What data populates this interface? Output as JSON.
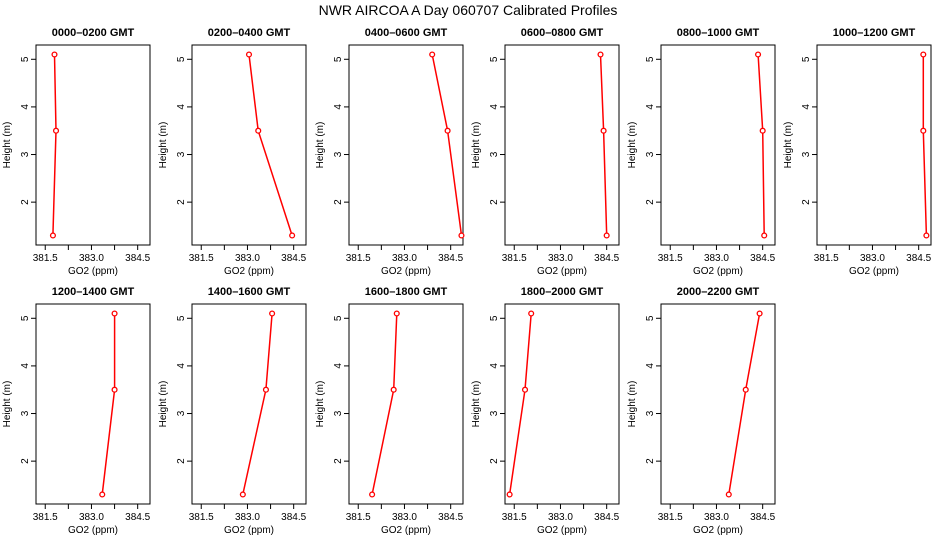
{
  "figure_title": "NWR AIRCOA A  Day 060707  Calibrated Profiles",
  "colors": {
    "profile_line": "#ff0000",
    "profile_marker": "#ff0000",
    "axes": "#000000"
  },
  "chart_data": [
    {
      "type": "line",
      "title": "0000–0200 GMT",
      "xlabel": "GO2 (ppm)",
      "ylabel": "Height (m)",
      "xlim": [
        381.2,
        384.9
      ],
      "ylim": [
        1.1,
        5.3
      ],
      "xticks": [
        "381.5",
        "383.0",
        "384.5"
      ],
      "yticks": [
        "2",
        "3",
        "4",
        "5"
      ],
      "grid": false,
      "series": [
        {
          "x": [
            381.75,
            381.85,
            381.8
          ],
          "y": [
            1.3,
            3.5,
            5.1
          ]
        }
      ]
    },
    {
      "type": "line",
      "title": "0200–0400 GMT",
      "xlabel": "GO2 (ppm)",
      "ylabel": "Height (m)",
      "xlim": [
        381.2,
        384.9
      ],
      "ylim": [
        1.1,
        5.3
      ],
      "xticks": [
        "381.5",
        "383.0",
        "384.5"
      ],
      "yticks": [
        "2",
        "3",
        "4",
        "5"
      ],
      "grid": false,
      "series": [
        {
          "x": [
            384.45,
            383.35,
            383.05
          ],
          "y": [
            1.3,
            3.5,
            5.1
          ]
        }
      ]
    },
    {
      "type": "line",
      "title": "0400–0600 GMT",
      "xlabel": "GO2 (ppm)",
      "ylabel": "Height (m)",
      "xlim": [
        381.2,
        384.9
      ],
      "ylim": [
        1.1,
        5.3
      ],
      "xticks": [
        "381.5",
        "383.0",
        "384.5"
      ],
      "yticks": [
        "2",
        "3",
        "4",
        "5"
      ],
      "grid": false,
      "series": [
        {
          "x": [
            384.85,
            384.4,
            383.9
          ],
          "y": [
            1.3,
            3.5,
            5.1
          ]
        }
      ]
    },
    {
      "type": "line",
      "title": "0600–0800 GMT",
      "xlabel": "GO2 (ppm)",
      "ylabel": "Height (m)",
      "xlim": [
        381.2,
        384.9
      ],
      "ylim": [
        1.1,
        5.3
      ],
      "xticks": [
        "381.5",
        "383.0",
        "384.5"
      ],
      "yticks": [
        "2",
        "3",
        "4",
        "5"
      ],
      "grid": false,
      "series": [
        {
          "x": [
            384.5,
            384.4,
            384.3
          ],
          "y": [
            1.3,
            3.5,
            5.1
          ]
        }
      ]
    },
    {
      "type": "line",
      "title": "0800–1000 GMT",
      "xlabel": "GO2 (ppm)",
      "ylabel": "Height (m)",
      "xlim": [
        381.2,
        384.9
      ],
      "ylim": [
        1.1,
        5.3
      ],
      "xticks": [
        "381.5",
        "383.0",
        "384.5"
      ],
      "yticks": [
        "2",
        "3",
        "4",
        "5"
      ],
      "grid": false,
      "series": [
        {
          "x": [
            384.55,
            384.5,
            384.35
          ],
          "y": [
            1.3,
            3.5,
            5.1
          ]
        }
      ]
    },
    {
      "type": "line",
      "title": "1000–1200 GMT",
      "xlabel": "GO2 (ppm)",
      "ylabel": "Height (m)",
      "xlim": [
        381.2,
        384.9
      ],
      "ylim": [
        1.1,
        5.3
      ],
      "xticks": [
        "381.5",
        "383.0",
        "384.5"
      ],
      "yticks": [
        "2",
        "3",
        "4",
        "5"
      ],
      "grid": false,
      "series": [
        {
          "x": [
            384.75,
            384.65,
            384.65
          ],
          "y": [
            1.3,
            3.5,
            5.1
          ]
        }
      ]
    },
    {
      "type": "line",
      "title": "1200–1400 GMT",
      "xlabel": "GO2 (ppm)",
      "ylabel": "Height (m)",
      "xlim": [
        381.2,
        384.9
      ],
      "ylim": [
        1.1,
        5.3
      ],
      "xticks": [
        "381.5",
        "383.0",
        "384.5"
      ],
      "yticks": [
        "2",
        "3",
        "4",
        "5"
      ],
      "grid": false,
      "series": [
        {
          "x": [
            383.35,
            383.75,
            383.75
          ],
          "y": [
            1.3,
            3.5,
            5.1
          ]
        }
      ]
    },
    {
      "type": "line",
      "title": "1400–1600 GMT",
      "xlabel": "GO2 (ppm)",
      "ylabel": "Height (m)",
      "xlim": [
        381.2,
        384.9
      ],
      "ylim": [
        1.1,
        5.3
      ],
      "xticks": [
        "381.5",
        "383.0",
        "384.5"
      ],
      "yticks": [
        "2",
        "3",
        "4",
        "5"
      ],
      "grid": false,
      "series": [
        {
          "x": [
            382.85,
            383.6,
            383.8
          ],
          "y": [
            1.3,
            3.5,
            5.1
          ]
        }
      ]
    },
    {
      "type": "line",
      "title": "1600–1800 GMT",
      "xlabel": "GO2 (ppm)",
      "ylabel": "Height (m)",
      "xlim": [
        381.2,
        384.9
      ],
      "ylim": [
        1.1,
        5.3
      ],
      "xticks": [
        "381.5",
        "383.0",
        "384.5"
      ],
      "yticks": [
        "2",
        "3",
        "4",
        "5"
      ],
      "grid": false,
      "series": [
        {
          "x": [
            381.95,
            382.65,
            382.75
          ],
          "y": [
            1.3,
            3.5,
            5.1
          ]
        }
      ]
    },
    {
      "type": "line",
      "title": "1800–2000 GMT",
      "xlabel": "GO2 (ppm)",
      "ylabel": "Height (m)",
      "xlim": [
        381.2,
        384.9
      ],
      "ylim": [
        1.1,
        5.3
      ],
      "xticks": [
        "381.5",
        "383.0",
        "384.5"
      ],
      "yticks": [
        "2",
        "3",
        "4",
        "5"
      ],
      "grid": false,
      "series": [
        {
          "x": [
            381.35,
            381.85,
            382.05
          ],
          "y": [
            1.3,
            3.5,
            5.1
          ]
        }
      ]
    },
    {
      "type": "line",
      "title": "2000–2200 GMT",
      "xlabel": "GO2 (ppm)",
      "ylabel": "Height (m)",
      "xlim": [
        381.2,
        384.9
      ],
      "ylim": [
        1.1,
        5.3
      ],
      "xticks": [
        "381.5",
        "383.0",
        "384.5"
      ],
      "yticks": [
        "2",
        "3",
        "4",
        "5"
      ],
      "grid": false,
      "series": [
        {
          "x": [
            383.4,
            383.95,
            384.4
          ],
          "y": [
            1.3,
            3.5,
            5.1
          ]
        }
      ]
    }
  ]
}
